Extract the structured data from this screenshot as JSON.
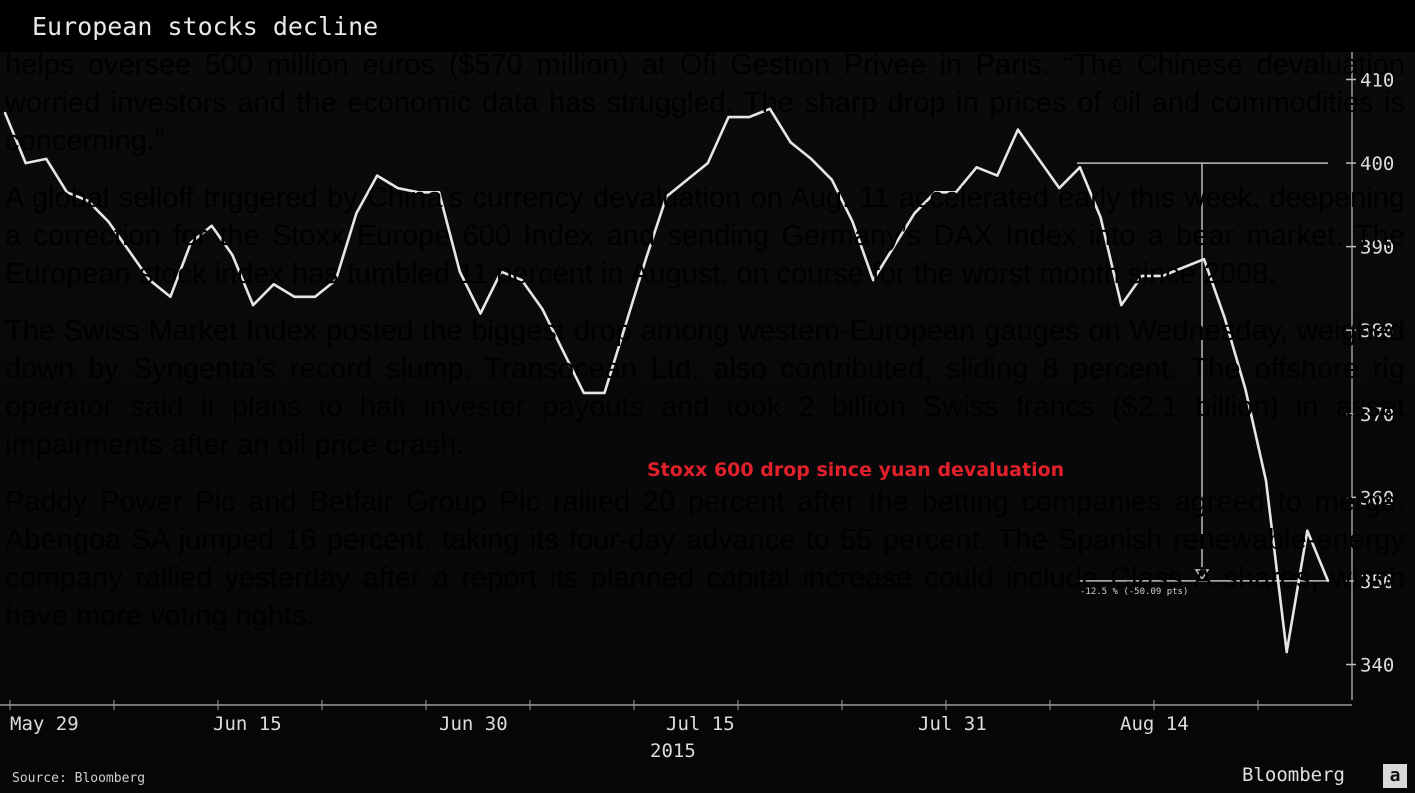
{
  "chart_data": {
    "type": "line",
    "title": "European stocks decline",
    "year_label": "2015",
    "x_tick_labels": [
      "May 29",
      "Jun 15",
      "Jun 30",
      "Jul 15",
      "Jul 31",
      "Aug 14"
    ],
    "y_tick_labels": [
      "410",
      "400",
      "390",
      "380",
      "370",
      "360",
      "350",
      "340"
    ],
    "y_ticks": [
      410,
      400,
      390,
      380,
      370,
      360,
      350,
      340
    ],
    "ylim": [
      335,
      413
    ],
    "axis_position": "right",
    "grid": false,
    "series": [
      {
        "color": "#e6e6e6",
        "values": [
          406,
          400,
          400.5,
          396.5,
          395.5,
          393,
          389.5,
          386,
          384,
          390.5,
          392.5,
          389,
          383,
          385.5,
          384,
          384,
          386,
          394,
          398.5,
          397,
          396.5,
          396.5,
          387,
          382,
          387,
          386,
          382.5,
          377.5,
          372.5,
          372.5,
          380.5,
          388.5,
          396,
          398,
          400,
          405.5,
          405.5,
          406.5,
          402.5,
          400.5,
          398,
          393,
          386,
          390,
          394,
          396.5,
          396.5,
          399.5,
          398.5,
          404,
          400.5,
          397,
          399.5,
          393.5,
          383,
          386.5,
          386.5,
          387.5,
          388.5,
          381.5,
          373,
          362,
          341.5,
          356,
          350
        ]
      }
    ],
    "annotations": {
      "caption": "Stoxx 600 drop since yuan devaluation",
      "measure_label": "-12.5 % (-50.09 pts)",
      "reference_level": 400,
      "target_level": 350
    }
  },
  "footer": {
    "source": "Source: Bloomberg",
    "brand": "Bloomberg",
    "logo_text": "a"
  },
  "overlay_text": [
    "helps oversee 500 million euros ($570 million) at Ofi Gestion Privee in Paris. “The Chinese devaluation worried investors and the economic data has struggled. The sharp drop in prices of oil and commodities is concerning.”",
    "A global selloff triggered by China’s currency devaluation on Aug. 11 accelerated early this week, deepening a correction for the Stoxx Europe 600 Index and sending Germany’s DAX Index into a bear market. The European stock index has tumbled 11 percent in August, on course for the worst month since 2008.",
    "The Swiss Market Index posted the biggest drop among western-European gauges on Wednesday, weighed down by Syngenta’s record slump. Transocean Ltd. also contributed, sliding 8 percent. The offshore rig operator said it plans to halt investor payouts and took 2 billion Swiss francs ($2.1 billion) in asset impairments after an oil price crash.",
    "Paddy Power Plc and Betfair Group Plc rallied 20 percent after the betting companies agreed to merge. Abengoa SA jumped 16 percent, taking its four-day advance to 55 percent. The Spanish renewable-energy company rallied yesterday after a report its planned capital increase could include Class A shares, which have more voting rights."
  ]
}
